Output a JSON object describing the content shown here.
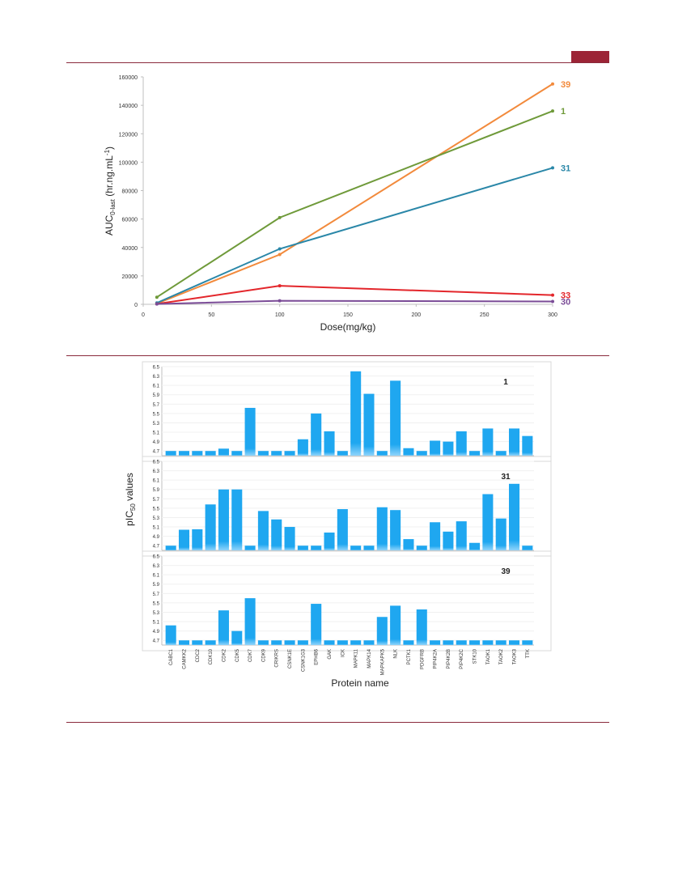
{
  "colors": {
    "rule": "#8a2a3c",
    "header_tab": "#9c2436",
    "bar": "#1fa7f0",
    "axis": "#bfbfbf"
  },
  "chart_data": [
    {
      "type": "line",
      "xlabel": "Dose(mg/kg)",
      "ylabel_main": "AUC",
      "ylabel_sub": "0-last",
      "ylabel_rest": " (hr.ng.mL",
      "ylabel_sup": "-1",
      "ylabel_end": ")",
      "xlim": [
        0,
        300
      ],
      "ylim": [
        0,
        160000
      ],
      "x_ticks": [
        0,
        50,
        100,
        150,
        200,
        250,
        300
      ],
      "y_ticks": [
        0,
        20000,
        40000,
        60000,
        80000,
        100000,
        120000,
        140000,
        160000
      ],
      "x": [
        10,
        100,
        300
      ],
      "series": [
        {
          "name": "39",
          "color": "#f28a3c",
          "values": [
            500,
            35000,
            155000
          ]
        },
        {
          "name": "1",
          "color": "#6f9a3a",
          "values": [
            5000,
            61000,
            136000
          ]
        },
        {
          "name": "31",
          "color": "#2a87a8",
          "values": [
            1000,
            39000,
            96000
          ]
        },
        {
          "name": "33",
          "color": "#e3262b",
          "values": [
            300,
            13000,
            6500
          ]
        },
        {
          "name": "30",
          "color": "#7b4c97",
          "values": [
            200,
            2500,
            2000
          ]
        }
      ]
    },
    {
      "type": "bar",
      "ylabel_main": "pIC",
      "ylabel_sub": "50",
      "ylabel_rest": " values",
      "xlabel": "Protein name",
      "ylim": [
        4.6,
        6.5
      ],
      "y_ticks": [
        "6.5",
        "6.3",
        "6.1",
        "5.9",
        "5.7",
        "5.5",
        "5.3",
        "5.1",
        "4.9",
        "4.7"
      ],
      "categories": [
        "CABC1",
        "CAMKK2",
        "CDC2",
        "CDK10",
        "CDK2",
        "CDK5",
        "CDK7",
        "CDK9",
        "CRIKRS",
        "CSNK1E",
        "CSNK1G3",
        "EPHB6",
        "GAK",
        "ICK",
        "MAPK11",
        "MAPK14",
        "MAPKAPK5",
        "NLK",
        "PCTK1",
        "PDGFRB",
        "PIP4K2A",
        "PIP4K2B",
        "PIP4K2C",
        "STK10",
        "TAOK1",
        "TAOK2",
        "TAOK3",
        "TTK"
      ],
      "panels": [
        {
          "label": "1",
          "values": [
            4.7,
            4.7,
            4.7,
            4.7,
            4.75,
            4.7,
            5.62,
            4.7,
            4.7,
            4.7,
            4.95,
            5.5,
            5.12,
            4.7,
            6.4,
            5.92,
            4.7,
            6.2,
            4.76,
            4.7,
            4.92,
            4.9,
            5.12,
            4.7,
            5.18,
            4.7,
            5.18,
            5.02
          ]
        },
        {
          "label": "31",
          "values": [
            4.7,
            5.04,
            5.05,
            5.58,
            5.9,
            5.9,
            4.7,
            5.44,
            5.26,
            5.1,
            4.7,
            4.7,
            4.98,
            5.48,
            4.7,
            4.7,
            5.52,
            5.46,
            4.84,
            4.7,
            5.2,
            5.0,
            5.22,
            4.76,
            5.8,
            5.28,
            6.02,
            4.7
          ]
        },
        {
          "label": "39",
          "values": [
            5.02,
            4.7,
            4.7,
            4.7,
            5.34,
            4.9,
            5.6,
            4.7,
            4.7,
            4.7,
            4.7,
            5.48,
            4.7,
            4.7,
            4.7,
            4.7,
            5.2,
            5.44,
            4.7,
            5.36,
            4.7,
            4.7,
            4.7,
            4.7,
            4.7,
            4.7,
            4.7,
            4.7
          ]
        }
      ]
    }
  ]
}
